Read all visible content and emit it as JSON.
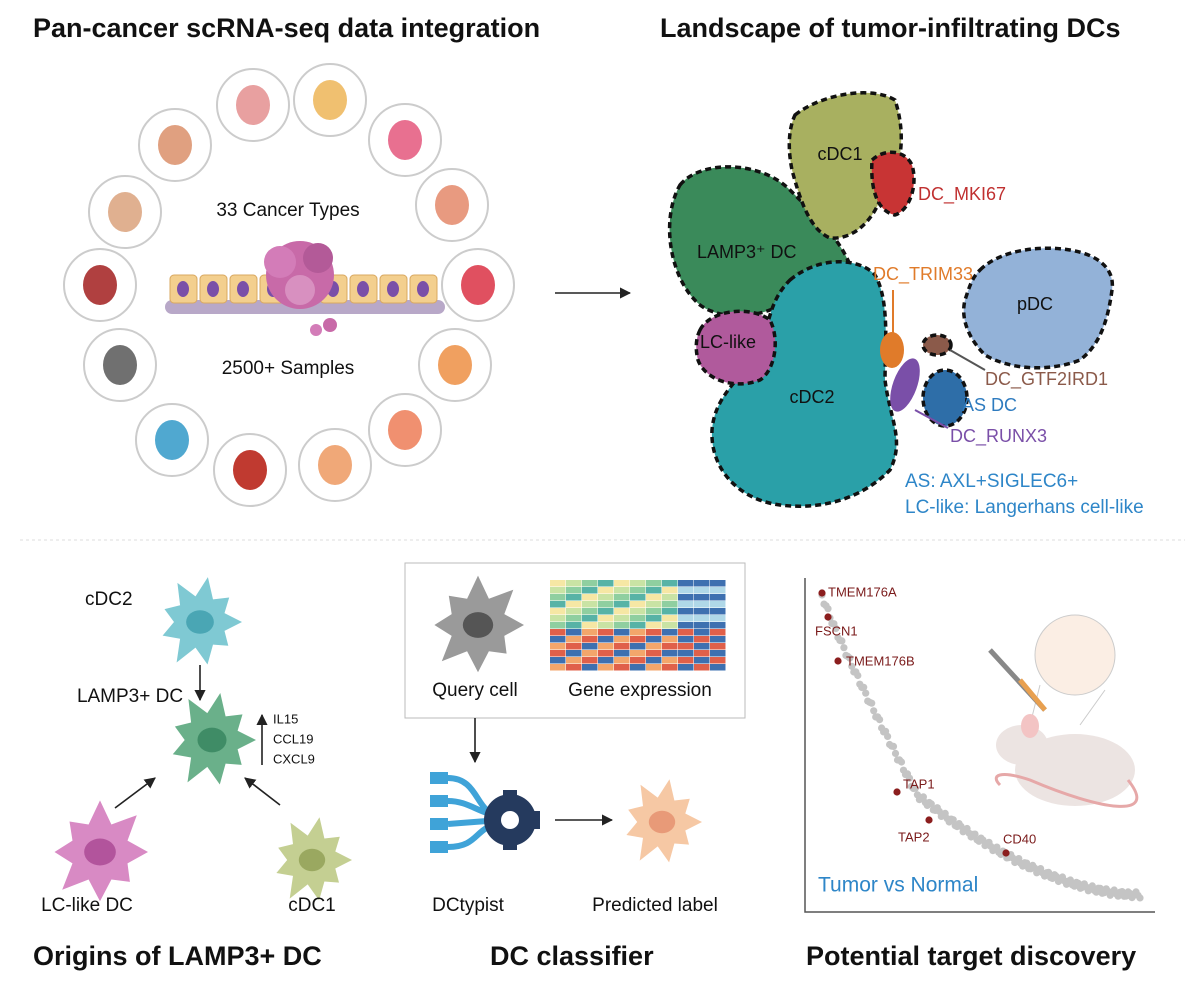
{
  "integration": {
    "title": "Pan-cancer scRNA-seq data integration",
    "cancer_types": "33 Cancer Types",
    "samples": "2500+ Samples"
  },
  "landscape": {
    "title": "Landscape of tumor-infiltrating DCs",
    "clusters": [
      "cDC1",
      "DC_MKI67",
      "LAMP3⁺ DC",
      "DC_TRIM33",
      "pDC",
      "LC-like",
      "cDC2",
      "DC_GTF2IRD1",
      "AS DC",
      "DC_RUNX3"
    ],
    "notes": [
      "AS: AXL+SIGLEC6+",
      "LC-like: Langerhans cell-like"
    ]
  },
  "origins": {
    "title": "Origins of LAMP3+ DC",
    "cells": [
      "cDC2",
      "LAMP3+ DC",
      "LC-like DC",
      "cDC1"
    ],
    "genes": [
      "IL15",
      "CCL19",
      "CXCL9"
    ]
  },
  "classifier": {
    "title": "DC classifier",
    "query": "Query cell",
    "expression": "Gene expression",
    "tool": "DCtypist",
    "output": "Predicted label"
  },
  "targets": {
    "title": "Potential target discovery",
    "genes": [
      "TMEM176A",
      "FSCN1",
      "TMEM176B",
      "TAP1",
      "TAP2",
      "CD40"
    ],
    "comparison": "Tumor vs Normal"
  }
}
